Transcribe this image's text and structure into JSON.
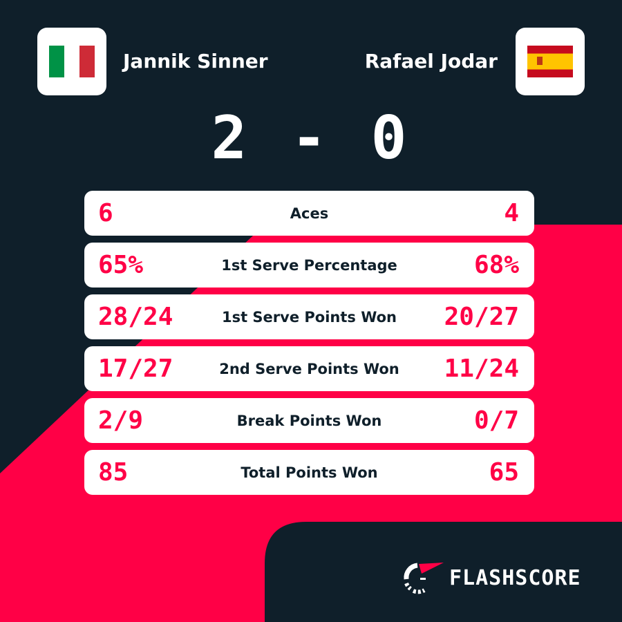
{
  "colors": {
    "background": "#0f1f2a",
    "accent": "#ff0046",
    "card": "#ffffff"
  },
  "home": {
    "name": "Jannik Sinner",
    "flag": "italy-flag-icon"
  },
  "away": {
    "name": "Rafael Jodar",
    "flag": "spain-flag-icon"
  },
  "score": {
    "home": "2",
    "separator": "-",
    "away": "0"
  },
  "stats": [
    {
      "label": "Aces",
      "home": "6",
      "away": "4"
    },
    {
      "label": "1st Serve Percentage",
      "home": "65%",
      "away": "68%"
    },
    {
      "label": "1st Serve Points Won",
      "home": "28/24",
      "away": "20/27"
    },
    {
      "label": "2nd Serve Points Won",
      "home": "17/27",
      "away": "11/24"
    },
    {
      "label": "Break Points Won",
      "home": "2/9",
      "away": "0/7"
    },
    {
      "label": "Total Points Won",
      "home": "85",
      "away": "65"
    }
  ],
  "brand": {
    "name": "FLASHSCORE"
  }
}
